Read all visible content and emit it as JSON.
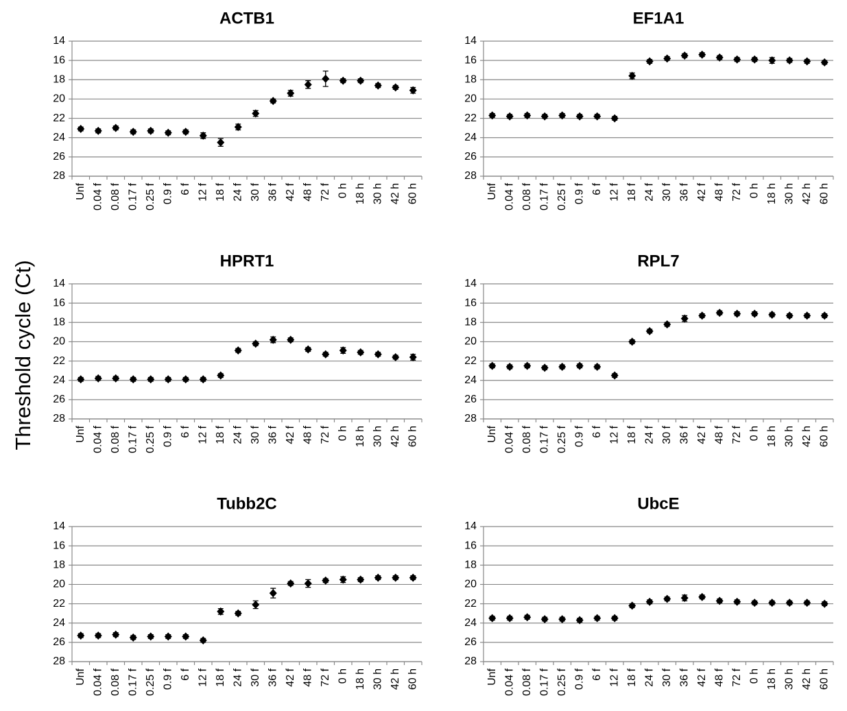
{
  "ylabel": "Threshold cycle (Ct)",
  "chart_data": [
    {
      "type": "errorbar",
      "title": "ACTB1",
      "color": "#000000",
      "grid": true,
      "categories": [
        "Unf",
        "0.04 f",
        "0.08 f",
        "0.17 f",
        "0.25 f",
        "0.9 f",
        "6 f",
        "12 f",
        "18 f",
        "24 f",
        "30 f",
        "36 f",
        "42 f",
        "48 f",
        "72 f",
        "0 h",
        "18 h",
        "30 h",
        "42 h",
        "60 h"
      ],
      "values": [
        23.1,
        23.3,
        23.0,
        23.4,
        23.3,
        23.5,
        23.4,
        23.8,
        24.5,
        22.9,
        21.5,
        20.2,
        19.4,
        18.5,
        17.9,
        18.1,
        18.1,
        18.6,
        18.8,
        19.1
      ],
      "errors": [
        0.2,
        0.2,
        0.2,
        0.2,
        0.2,
        0.2,
        0.2,
        0.3,
        0.4,
        0.3,
        0.3,
        0.2,
        0.3,
        0.4,
        0.8,
        0.2,
        0.2,
        0.2,
        0.2,
        0.3
      ],
      "ylim": [
        28,
        14
      ],
      "yticks": [
        14,
        16,
        18,
        20,
        22,
        24,
        26,
        28
      ]
    },
    {
      "type": "errorbar",
      "title": "EF1A1",
      "color": "#000000",
      "grid": true,
      "categories": [
        "Unf",
        "0.04 f",
        "0.08 f",
        "0.17 f",
        "0.25 f",
        "0.9 f",
        "6 f",
        "12 f",
        "18 f",
        "24 f",
        "30 f",
        "36 f",
        "42 f",
        "48 f",
        "72 f",
        "0 h",
        "18 h",
        "30 h",
        "42 h",
        "60 h"
      ],
      "values": [
        21.7,
        21.8,
        21.7,
        21.8,
        21.7,
        21.8,
        21.8,
        22.0,
        17.6,
        16.1,
        15.8,
        15.5,
        15.4,
        15.7,
        15.9,
        15.9,
        16.0,
        16.0,
        16.1,
        16.2
      ],
      "errors": [
        0.2,
        0.2,
        0.2,
        0.2,
        0.2,
        0.2,
        0.2,
        0.2,
        0.3,
        0.2,
        0.2,
        0.2,
        0.2,
        0.2,
        0.2,
        0.2,
        0.3,
        0.2,
        0.2,
        0.2
      ],
      "ylim": [
        28,
        14
      ],
      "yticks": [
        14,
        16,
        18,
        20,
        22,
        24,
        26,
        28
      ]
    },
    {
      "type": "errorbar",
      "title": "HPRT1",
      "color": "#000000",
      "grid": true,
      "categories": [
        "Unf",
        "0.04 f",
        "0.08 f",
        "0.17 f",
        "0.25 f",
        "0.9 f",
        "6 f",
        "12 f",
        "18 f",
        "24 f",
        "30 f",
        "36 f",
        "42 f",
        "48 f",
        "72 f",
        "0 h",
        "18 h",
        "30 h",
        "42 h",
        "60 h"
      ],
      "values": [
        23.9,
        23.8,
        23.8,
        23.9,
        23.9,
        23.9,
        23.9,
        23.9,
        23.5,
        20.9,
        20.2,
        19.8,
        19.8,
        20.8,
        21.3,
        20.9,
        21.1,
        21.3,
        21.6,
        21.6
      ],
      "errors": [
        0.2,
        0.2,
        0.2,
        0.2,
        0.2,
        0.2,
        0.2,
        0.2,
        0.2,
        0.2,
        0.2,
        0.3,
        0.2,
        0.2,
        0.2,
        0.3,
        0.2,
        0.2,
        0.2,
        0.3
      ],
      "ylim": [
        28,
        14
      ],
      "yticks": [
        14,
        16,
        18,
        20,
        22,
        24,
        26,
        28
      ]
    },
    {
      "type": "errorbar",
      "title": "RPL7",
      "color": "#000000",
      "grid": true,
      "categories": [
        "Unf",
        "0.04 f",
        "0.08 f",
        "0.17 f",
        "0.25 f",
        "0.9 f",
        "6 f",
        "12 f",
        "18 f",
        "24 f",
        "30 f",
        "36 f",
        "42 f",
        "48 f",
        "72 f",
        "0 h",
        "18 h",
        "30 h",
        "42 h",
        "60 h"
      ],
      "values": [
        22.5,
        22.6,
        22.5,
        22.7,
        22.6,
        22.5,
        22.6,
        23.5,
        20.0,
        18.9,
        18.2,
        17.6,
        17.3,
        17.0,
        17.1,
        17.1,
        17.2,
        17.3,
        17.3,
        17.3
      ],
      "errors": [
        0.2,
        0.2,
        0.2,
        0.2,
        0.2,
        0.2,
        0.2,
        0.2,
        0.2,
        0.2,
        0.2,
        0.3,
        0.2,
        0.2,
        0.2,
        0.2,
        0.2,
        0.2,
        0.2,
        0.2
      ],
      "ylim": [
        28,
        14
      ],
      "yticks": [
        14,
        16,
        18,
        20,
        22,
        24,
        26,
        28
      ]
    },
    {
      "type": "errorbar",
      "title": "Tubb2C",
      "color": "#000000",
      "grid": true,
      "categories": [
        "Unf",
        "0.04 f",
        "0.08 f",
        "0.17 f",
        "0.25 f",
        "0.9 f",
        "6 f",
        "12 f",
        "18 f",
        "24 f",
        "30 f",
        "36 f",
        "42 f",
        "48 f",
        "72 f",
        "0 h",
        "18 h",
        "30 h",
        "42 h",
        "60 h"
      ],
      "values": [
        25.3,
        25.3,
        25.2,
        25.5,
        25.4,
        25.4,
        25.4,
        25.8,
        22.8,
        23.0,
        22.1,
        20.9,
        19.9,
        19.9,
        19.6,
        19.5,
        19.5,
        19.3,
        19.3,
        19.3
      ],
      "errors": [
        0.2,
        0.2,
        0.2,
        0.2,
        0.2,
        0.2,
        0.2,
        0.2,
        0.3,
        0.2,
        0.4,
        0.5,
        0.2,
        0.4,
        0.2,
        0.3,
        0.2,
        0.2,
        0.2,
        0.2
      ],
      "ylim": [
        28,
        14
      ],
      "yticks": [
        14,
        16,
        18,
        20,
        22,
        24,
        26,
        28
      ]
    },
    {
      "type": "errorbar",
      "title": "UbcE",
      "color": "#000000",
      "grid": true,
      "categories": [
        "Unf",
        "0.04 f",
        "0.08 f",
        "0.17 f",
        "0.25 f",
        "0.9 f",
        "6 f",
        "12 f",
        "18 f",
        "24 f",
        "30 f",
        "36 f",
        "42 f",
        "48 f",
        "72 f",
        "0 h",
        "18 h",
        "30 h",
        "42 h",
        "60 h"
      ],
      "values": [
        23.5,
        23.5,
        23.4,
        23.6,
        23.6,
        23.7,
        23.5,
        23.5,
        22.2,
        21.8,
        21.5,
        21.4,
        21.3,
        21.7,
        21.8,
        21.9,
        21.9,
        21.9,
        21.9,
        22.0
      ],
      "errors": [
        0.2,
        0.2,
        0.2,
        0.2,
        0.2,
        0.2,
        0.2,
        0.2,
        0.2,
        0.2,
        0.2,
        0.3,
        0.2,
        0.2,
        0.2,
        0.2,
        0.2,
        0.2,
        0.2,
        0.2
      ],
      "ylim": [
        28,
        14
      ],
      "yticks": [
        14,
        16,
        18,
        20,
        22,
        24,
        26,
        28
      ]
    }
  ]
}
